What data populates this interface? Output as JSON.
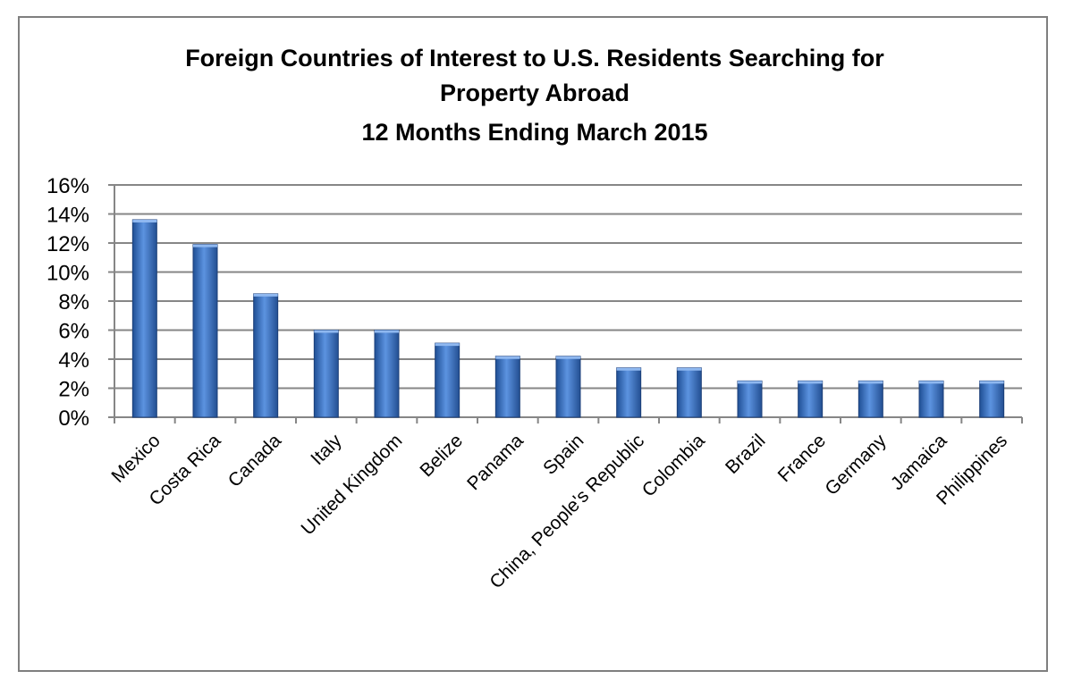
{
  "chart_data": {
    "type": "bar",
    "title_lines": [
      "Foreign Countries of Interest to U.S. Residents Searching for",
      "Property Abroad",
      "12 Months Ending March 2015"
    ],
    "categories": [
      "Mexico",
      "Costa Rica",
      "Canada",
      "Italy",
      "United Kingdom",
      "Belize",
      "Panama",
      "Spain",
      "China, People's Republic",
      "Colombia",
      "Brazil",
      "France",
      "Germany",
      "Jamaica",
      "Philippines"
    ],
    "values": [
      13.6,
      11.9,
      8.5,
      6.0,
      6.0,
      5.1,
      4.2,
      4.2,
      3.4,
      3.4,
      2.5,
      2.5,
      2.5,
      2.5,
      2.5
    ],
    "value_unit": "%",
    "ylim": [
      0,
      16
    ],
    "yticks": [
      "0%",
      "2%",
      "4%",
      "6%",
      "8%",
      "10%",
      "12%",
      "14%",
      "16%"
    ],
    "xlabel": "",
    "ylabel": "",
    "grid": true,
    "legend": "none",
    "bar_color": "#3f74c4"
  }
}
